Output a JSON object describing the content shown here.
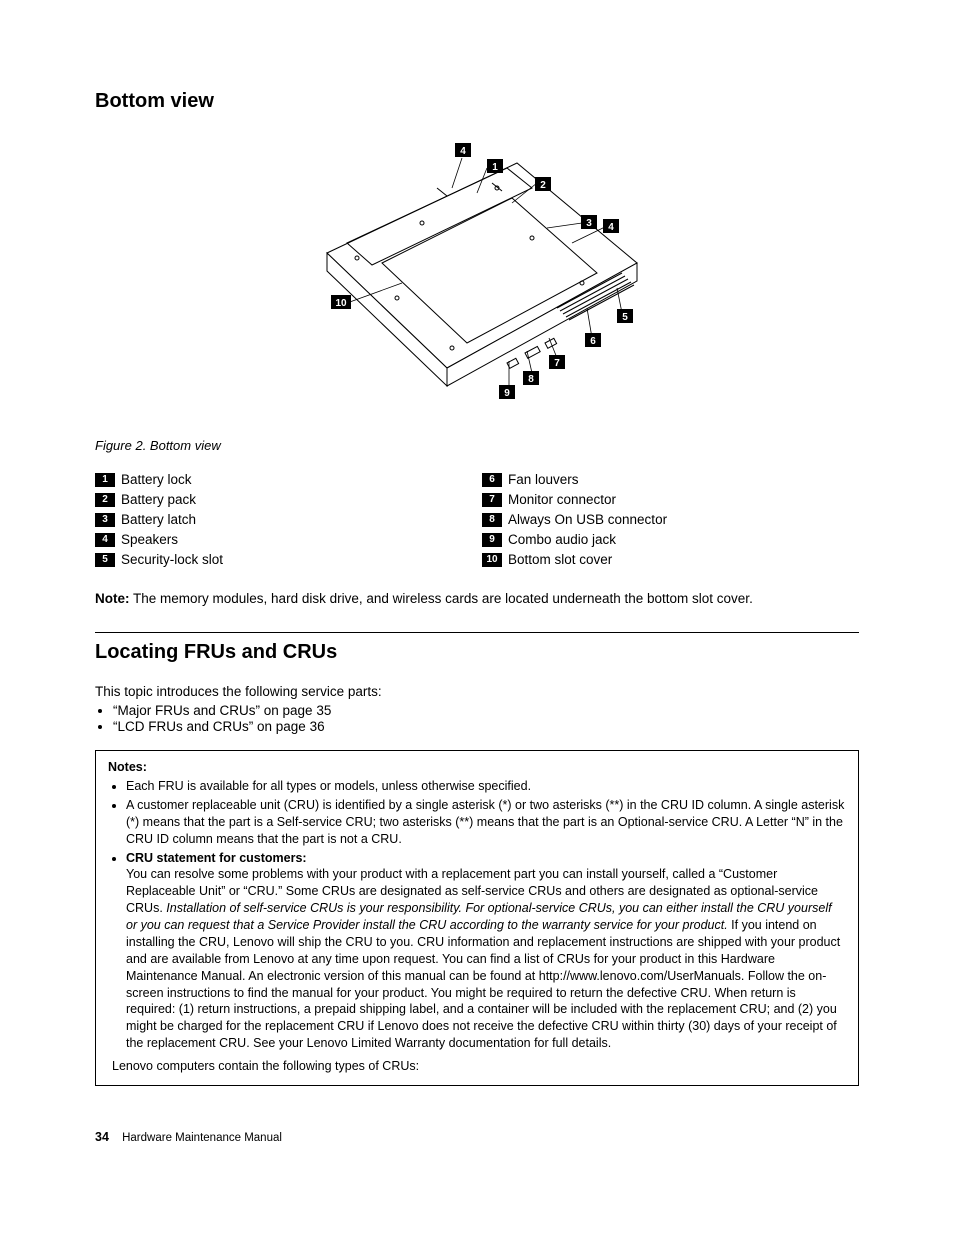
{
  "section1_title": "Bottom view",
  "figure_caption": "Figure 2.  Bottom view",
  "callouts": [
    "1",
    "2",
    "3",
    "4",
    "5",
    "6",
    "7",
    "8",
    "9",
    "10"
  ],
  "legend_left": [
    {
      "n": "1",
      "label": "Battery lock"
    },
    {
      "n": "2",
      "label": "Battery pack"
    },
    {
      "n": "3",
      "label": "Battery latch"
    },
    {
      "n": "4",
      "label": "Speakers"
    },
    {
      "n": "5",
      "label": "Security-lock slot"
    }
  ],
  "legend_right": [
    {
      "n": "6",
      "label": "Fan louvers"
    },
    {
      "n": "7",
      "label": "Monitor connector"
    },
    {
      "n": "8",
      "label": "Always On USB connector"
    },
    {
      "n": "9",
      "label": "Combo audio jack"
    },
    {
      "n": "10",
      "label": "Bottom slot cover"
    }
  ],
  "note_label": "Note:",
  "note_text": " The memory modules, hard disk drive, and wireless cards are located underneath the bottom slot cover.",
  "section2_title": "Locating FRUs and CRUs",
  "intro_text": "This topic introduces the following service parts:",
  "intro_bullets": [
    "“Major FRUs and CRUs” on page 35",
    "“LCD FRUs and CRUs” on page 36"
  ],
  "notes_header": "Notes:",
  "notes_b1": "Each FRU is available for all types or models, unless otherwise specified.",
  "notes_b2": "A customer replaceable unit (CRU) is identified by a single asterisk (*) or two asterisks (**) in the CRU ID column. A single asterisk (*) means that the part is a Self-service CRU; two asterisks (**) means that the part is an Optional-service CRU. A Letter “N” in the CRU ID column means that the part is not a CRU.",
  "notes_b3_head": "CRU statement for customers:",
  "notes_b3_p1a": "You can resolve some problems with your product with a replacement part you can install yourself, called a “Customer Replaceable Unit” or “CRU.” Some CRUs are designated as self-service CRUs and others are designated as optional-service CRUs. ",
  "notes_b3_italic": "Installation of self-service CRUs is your responsibility. For optional-service CRUs, you can either install the CRU yourself or you can request that a Service Provider install the CRU according to the warranty service for your product.",
  "notes_b3_p1b": " If you intend on installing the CRU, Lenovo will ship the CRU to you. CRU information and replacement instructions are shipped with your product and are available from Lenovo at any time upon request. You can find a list of CRUs for your product in this Hardware Maintenance Manual. An electronic version of this manual can be found at http://www.lenovo.com/UserManuals. Follow the on-screen instructions to find the manual for your product. You might be required to return the defective CRU. When return is required: (1) return instructions, a prepaid shipping label, and a container will be included with the replacement CRU; and (2) you might be charged for the replacement CRU if Lenovo does not receive the defective CRU within thirty (30) days of your receipt of the replacement CRU. See your Lenovo Limited Warranty documentation for full details.",
  "notes_last": "Lenovo computers contain the following types of CRUs:",
  "page_number": "34",
  "footer_text": "Hardware Maintenance Manual",
  "colors": {
    "badge_bg": "#000000",
    "badge_fg": "#ffffff",
    "stroke": "#000000"
  }
}
